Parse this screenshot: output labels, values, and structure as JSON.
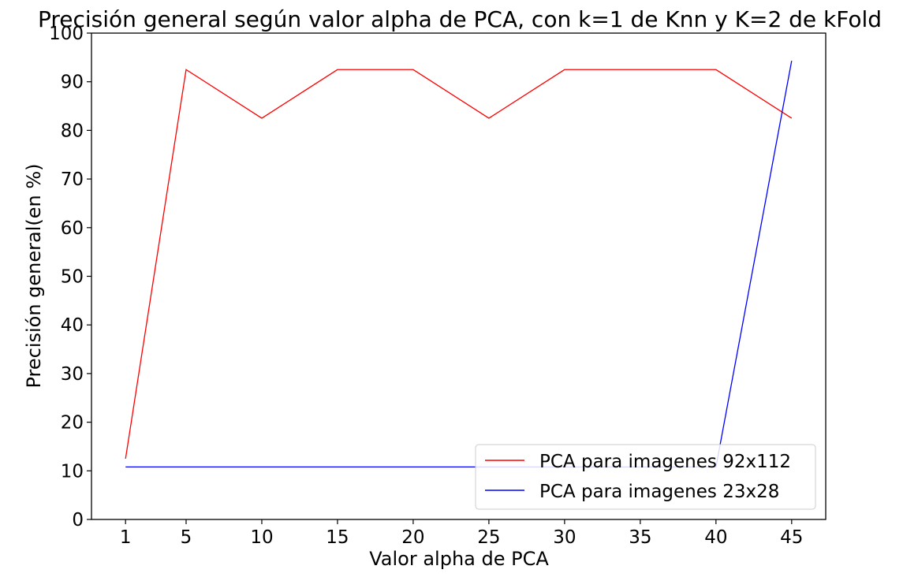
{
  "chart_data": {
    "type": "line",
    "title": "Precisión general según valor alpha de PCA, con k=1 de Knn y K=2 de kFold",
    "xlabel": "Valor alpha de PCA",
    "ylabel": "Precisión general(en %)",
    "x": [
      1,
      5,
      10,
      15,
      20,
      25,
      30,
      35,
      40,
      45
    ],
    "x_ticks": [
      "1",
      "5",
      "10",
      "15",
      "20",
      "25",
      "30",
      "35",
      "40",
      "45"
    ],
    "xlim": [
      -1.25,
      47.25
    ],
    "ylim": [
      0,
      100
    ],
    "y_ticks": [
      "0",
      "10",
      "20",
      "30",
      "40",
      "50",
      "60",
      "70",
      "80",
      "90",
      "100"
    ],
    "grid": false,
    "legend_position": "lower-right",
    "series": [
      {
        "name": "PCA para imagenes 92x112",
        "color": "#ff0000",
        "values": [
          12.5,
          92.5,
          82.5,
          92.5,
          92.5,
          82.5,
          92.5,
          92.5,
          92.5,
          82.5
        ]
      },
      {
        "name": "PCA para imagenes 23x28",
        "color": "#0000ff",
        "values": [
          10.8,
          10.8,
          10.8,
          10.8,
          10.8,
          10.8,
          10.8,
          10.8,
          10.8,
          94.3
        ]
      }
    ]
  }
}
